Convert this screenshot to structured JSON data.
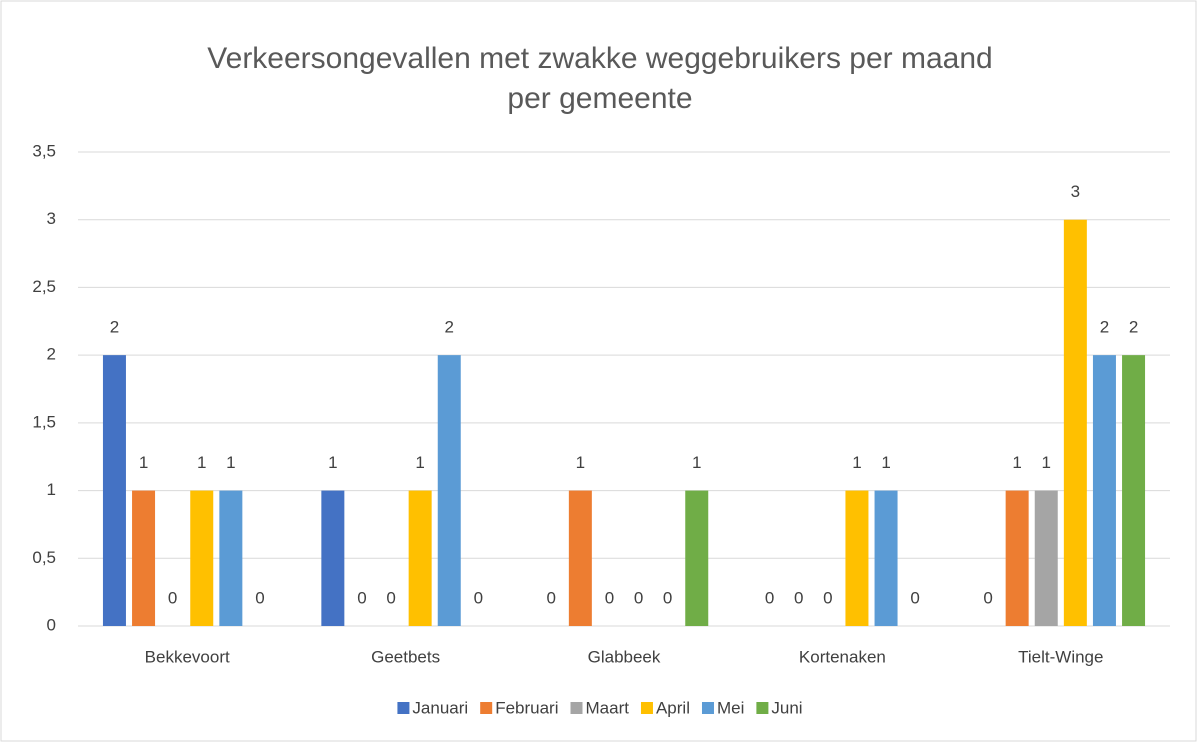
{
  "chart_data": {
    "type": "bar",
    "title": "Verkeersongevallen met zwakke weggebruikers per maand per gemeente",
    "categories": [
      "Bekkevoort",
      "Geetbets",
      "Glabbeek",
      "Kortenaken",
      "Tielt-Winge"
    ],
    "series": [
      {
        "name": "Januari",
        "color": "#4472c4",
        "values": [
          2,
          1,
          0,
          0,
          0
        ]
      },
      {
        "name": "Februari",
        "color": "#ed7d31",
        "values": [
          1,
          0,
          1,
          0,
          1
        ]
      },
      {
        "name": "Maart",
        "color": "#a5a5a5",
        "values": [
          0,
          0,
          0,
          0,
          1
        ]
      },
      {
        "name": "April",
        "color": "#ffc000",
        "values": [
          1,
          1,
          0,
          1,
          3
        ]
      },
      {
        "name": "Mei",
        "color": "#5b9bd5",
        "values": [
          1,
          2,
          0,
          1,
          2
        ]
      },
      {
        "name": "Juni",
        "color": "#70ad47",
        "values": [
          0,
          0,
          1,
          0,
          2
        ]
      }
    ],
    "ylim": [
      0,
      3.5
    ],
    "yticks": [
      0,
      {
        "value": 0.5,
        "label": "0,5"
      },
      1,
      {
        "value": 1.5,
        "label": "1,5"
      },
      2,
      {
        "value": 2.5,
        "label": "2,5"
      },
      3,
      {
        "value": 3.5,
        "label": "3,5"
      }
    ],
    "grid": true,
    "legend": "bottom"
  }
}
